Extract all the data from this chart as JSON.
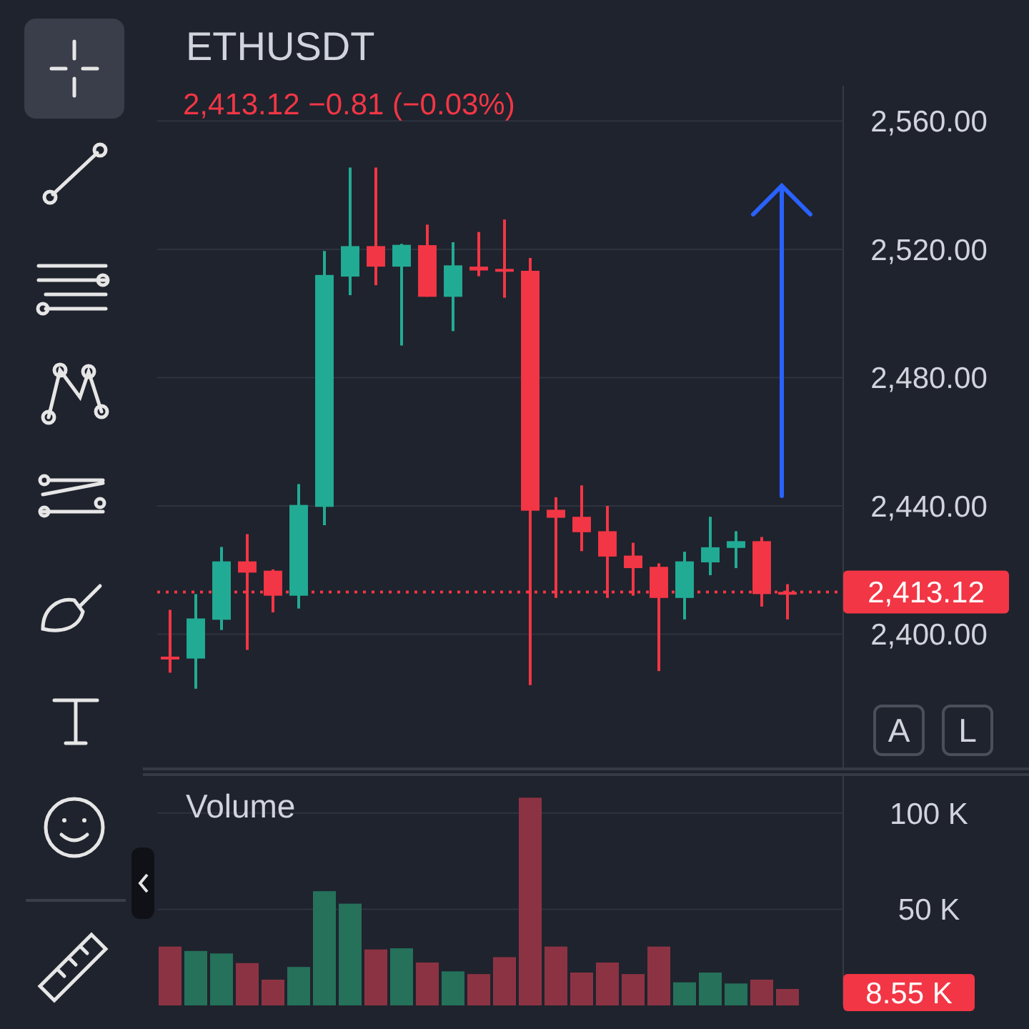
{
  "chart_data": [
    {
      "type": "candlestick",
      "title": "ETHUSDT",
      "subtitle": "2,413.12  −0.81 (−0.03%)",
      "categories": [
        null,
        null,
        null,
        null,
        null,
        null,
        null,
        null,
        null,
        null,
        null,
        null,
        null,
        null,
        null,
        null,
        null,
        null,
        null,
        null,
        null,
        null,
        null,
        null,
        null
      ],
      "ohlc": [
        [
          2393,
          2407.6,
          2388,
          2392.5
        ],
        [
          2392.4,
          2412.5,
          2383,
          2404.9
        ],
        [
          2404.5,
          2427.2,
          2401.3,
          2422.7
        ],
        [
          2422.7,
          2431.2,
          2395.1,
          2419.2
        ],
        [
          2419.8,
          2420.2,
          2406.8,
          2412
        ],
        [
          2412,
          2446.8,
          2408,
          2440.3
        ],
        [
          2439.7,
          2519.5,
          2434,
          2512
        ],
        [
          2511.5,
          2545.5,
          2505.7,
          2521
        ],
        [
          2521,
          2545.5,
          2508.8,
          2514.6
        ],
        [
          2514.6,
          2521.7,
          2490,
          2521.4
        ],
        [
          2521.3,
          2527.7,
          2505.2,
          2505.2
        ],
        [
          2505.2,
          2522.2,
          2494.5,
          2515
        ],
        [
          2514.6,
          2525.4,
          2511.6,
          2513.4
        ],
        [
          2513.9,
          2529.3,
          2504.9,
          2513.7
        ],
        [
          2513.3,
          2517.3,
          2384.1,
          2438.5
        ],
        [
          2438.8,
          2442.7,
          2411.3,
          2436.3
        ],
        [
          2436.6,
          2446.4,
          2425.9,
          2431.8
        ],
        [
          2432.1,
          2440,
          2411.3,
          2424.2
        ],
        [
          2424.5,
          2428.5,
          2412,
          2420.6
        ],
        [
          2421,
          2422.1,
          2388.5,
          2411.3
        ],
        [
          2411.3,
          2425.7,
          2404.6,
          2422.7
        ],
        [
          2422.4,
          2436.6,
          2418.4,
          2427.1
        ],
        [
          2426.9,
          2432.1,
          2420.6,
          2429
        ],
        [
          2429,
          2430.3,
          2408.6,
          2412.5
        ],
        [
          2413.2,
          2415.6,
          2404.6,
          2413.12
        ]
      ],
      "colors": [
        "#f23645",
        "#22ab94",
        "#22ab94",
        "#f23645",
        "#f23645",
        "#22ab94",
        "#22ab94",
        "#22ab94",
        "#f23645",
        "#22ab94",
        "#f23645",
        "#22ab94",
        "#f23645",
        "#f23645",
        "#f23645",
        "#f23645",
        "#f23645",
        "#f23645",
        "#f23645",
        "#f23645",
        "#22ab94",
        "#22ab94",
        "#22ab94",
        "#f23645",
        "#f23645"
      ],
      "ylim": [
        2358,
        2571
      ],
      "yticks": [
        {
          "value": 2400,
          "label": "2,400.00"
        },
        {
          "value": 2440,
          "label": "2,440.00"
        },
        {
          "value": 2480,
          "label": "2,480.00"
        },
        {
          "value": 2520,
          "label": "2,520.00"
        },
        {
          "value": 2560,
          "label": "2,560.00"
        }
      ],
      "grid": "y",
      "ref_lines": [
        {
          "axis": "y",
          "value": 2413.12,
          "label": "2,413.12",
          "color": "#f23645",
          "line_style": "dotted"
        }
      ],
      "annotations": [
        "A",
        "L"
      ]
    },
    {
      "type": "bar",
      "title": "Volume",
      "categories": [
        null,
        null,
        null,
        null,
        null,
        null,
        null,
        null,
        null,
        null,
        null,
        null,
        null,
        null,
        null,
        null,
        null,
        null,
        null,
        null,
        null,
        null,
        null,
        null,
        null
      ],
      "values": [
        30600,
        28300,
        27000,
        22000,
        13400,
        20000,
        59400,
        52900,
        29100,
        29700,
        22300,
        17700,
        16300,
        25100,
        108000,
        30600,
        17100,
        22300,
        16300,
        30600,
        12000,
        17100,
        11400,
        13400,
        8550
      ],
      "colors": [
        "#8c3343",
        "#25715a",
        "#25715a",
        "#8c3343",
        "#8c3343",
        "#25715a",
        "#25715a",
        "#25715a",
        "#8c3343",
        "#25715a",
        "#8c3343",
        "#25715a",
        "#8c3343",
        "#8c3343",
        "#8c3343",
        "#8c3343",
        "#8c3343",
        "#8c3343",
        "#8c3343",
        "#8c3343",
        "#25715a",
        "#25715a",
        "#25715a",
        "#8c3343",
        "#8c3343"
      ],
      "ylim": [
        0,
        120000
      ],
      "yticks": [
        {
          "value": 50000,
          "label": "50 K"
        },
        {
          "value": 100000,
          "label": "100 K"
        }
      ],
      "grid": "y",
      "annotations": [
        "8.55 K"
      ]
    }
  ]
}
